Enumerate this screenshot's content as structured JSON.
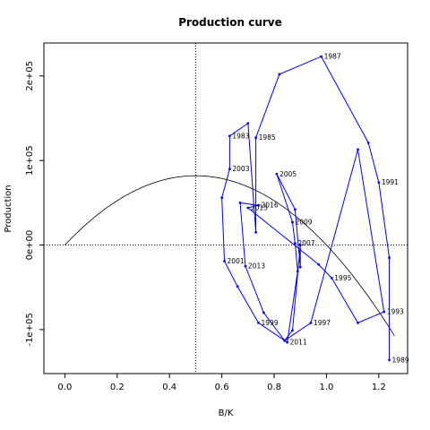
{
  "chart_data": {
    "type": "line",
    "title": "Production curve",
    "xlabel": "B/K",
    "ylabel": "Production",
    "xlim": [
      -0.08,
      1.31
    ],
    "ylim": [
      -152000,
      239000
    ],
    "x_ticks": [
      0.0,
      0.2,
      0.4,
      0.6,
      0.8,
      1.0,
      1.2
    ],
    "x_tick_labels": [
      "0.0",
      "0.2",
      "0.4",
      "0.6",
      "0.8",
      "1.0",
      "1.2"
    ],
    "y_ticks": [
      -100000,
      0,
      100000,
      200000
    ],
    "y_tick_labels": [
      "-1e+05",
      "0e+00",
      "1e+05",
      "2e+05"
    ],
    "ref_vline_x": 0.5,
    "ref_hline_y": 0,
    "curve": {
      "r": 0.66,
      "K": 1,
      "x_max": 1.26,
      "b_max_production": 82000
    },
    "series": [
      {
        "color": "#0000ff",
        "points": [
          {
            "x": 1.24,
            "y": -136000,
            "label": "1989"
          },
          {
            "x": 1.24,
            "y": -15000,
            "label": ""
          },
          {
            "x": 1.2,
            "y": 74000,
            "label": "1991"
          },
          {
            "x": 1.16,
            "y": 121000,
            "label": ""
          },
          {
            "x": 0.98,
            "y": 223000,
            "label": "1987"
          },
          {
            "x": 0.82,
            "y": 202000,
            "label": ""
          },
          {
            "x": 0.73,
            "y": 127000,
            "label": "1985"
          },
          {
            "x": 0.73,
            "y": 15000,
            "label": ""
          },
          {
            "x": 0.7,
            "y": 144000,
            "label": ""
          },
          {
            "x": 0.63,
            "y": 129000,
            "label": "1983"
          },
          {
            "x": 0.63,
            "y": 90000,
            "label": "2003"
          },
          {
            "x": 0.6,
            "y": 56000,
            "label": ""
          },
          {
            "x": 0.61,
            "y": -19000,
            "label": "2001"
          },
          {
            "x": 0.66,
            "y": -49000,
            "label": ""
          },
          {
            "x": 0.74,
            "y": -92000,
            "label": "1999"
          },
          {
            "x": 0.85,
            "y": -115000,
            "label": "2011"
          },
          {
            "x": 0.89,
            "y": -31000,
            "label": ""
          },
          {
            "x": 0.88,
            "y": 2000,
            "label": "2007"
          },
          {
            "x": 0.87,
            "y": 27000,
            "label": "2009"
          },
          {
            "x": 0.81,
            "y": 84000,
            "label": "2005"
          },
          {
            "x": 0.88,
            "y": 42000,
            "label": ""
          },
          {
            "x": 0.9,
            "y": -26000,
            "label": ""
          },
          {
            "x": 0.9,
            "y": 0,
            "label": ""
          },
          {
            "x": 0.87,
            "y": -101000,
            "label": ""
          },
          {
            "x": 0.84,
            "y": -113000,
            "label": ""
          },
          {
            "x": 0.76,
            "y": -80000,
            "label": ""
          },
          {
            "x": 0.69,
            "y": -25000,
            "label": "2013"
          },
          {
            "x": 0.67,
            "y": 50000,
            "label": ""
          },
          {
            "x": 0.74,
            "y": 47000,
            "label": "2016"
          },
          {
            "x": 0.7,
            "y": 44000,
            "label": "2015"
          },
          {
            "x": 0.97,
            "y": -23000,
            "label": ""
          },
          {
            "x": 1.02,
            "y": -39000,
            "label": "1995"
          },
          {
            "x": 1.12,
            "y": -92000,
            "label": ""
          },
          {
            "x": 1.22,
            "y": -79000,
            "label": "1993"
          },
          {
            "x": 1.12,
            "y": 113000,
            "label": ""
          },
          {
            "x": 0.94,
            "y": -92000,
            "label": "1997"
          },
          {
            "x": 0.84,
            "y": -113000,
            "label": ""
          }
        ]
      }
    ]
  }
}
